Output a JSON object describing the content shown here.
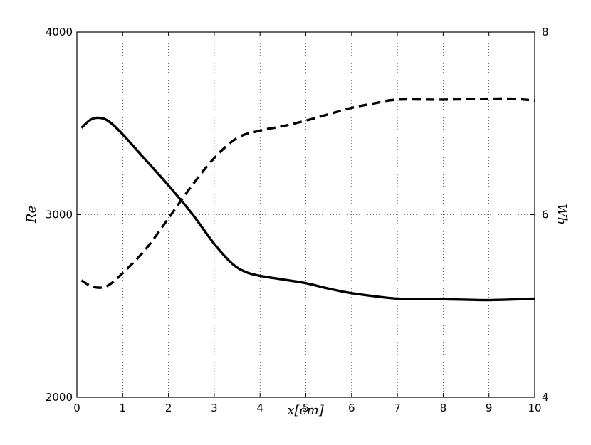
{
  "chart_data": {
    "type": "line",
    "xlabel": "x[cm]",
    "ylabel_left": "Re",
    "ylabel_right": "Wh",
    "xlim": [
      0,
      10
    ],
    "ylim_left": [
      2000,
      4000
    ],
    "ylim_right": [
      4,
      8
    ],
    "x_ticks": [
      "0",
      "1",
      "2",
      "3",
      "4",
      "5",
      "6",
      "7",
      "8",
      "9",
      "10"
    ],
    "y_left_ticks": [
      "2000",
      "3000",
      "4000"
    ],
    "y_right_ticks": [
      "4",
      "6",
      "8"
    ],
    "grid": true,
    "series": [
      {
        "axis": "left",
        "style": "solid",
        "color": "#000000",
        "x": [
          0.1,
          0.3,
          0.5,
          0.7,
          1.0,
          1.5,
          2.0,
          2.5,
          3.0,
          3.4,
          3.7,
          4.0,
          4.5,
          5.0,
          5.5,
          6.0,
          7.0,
          8.0,
          9.0,
          10.0
        ],
        "y": [
          3475,
          3520,
          3530,
          3510,
          3440,
          3300,
          3160,
          3010,
          2840,
          2730,
          2685,
          2665,
          2645,
          2625,
          2595,
          2570,
          2540,
          2537,
          2532,
          2540
        ]
      },
      {
        "axis": "right",
        "style": "dashed",
        "color": "#000000",
        "x": [
          0.1,
          0.3,
          0.5,
          0.7,
          1.0,
          1.5,
          2.0,
          2.5,
          3.0,
          3.5,
          4.0,
          4.5,
          5.0,
          5.5,
          6.0,
          6.5,
          7.0,
          8.0,
          9.0,
          9.5,
          10.0
        ],
        "y": [
          5.28,
          5.22,
          5.2,
          5.23,
          5.36,
          5.62,
          5.96,
          6.31,
          6.62,
          6.84,
          6.92,
          6.97,
          7.03,
          7.1,
          7.17,
          7.22,
          7.26,
          7.26,
          7.27,
          7.27,
          7.25
        ]
      }
    ]
  }
}
